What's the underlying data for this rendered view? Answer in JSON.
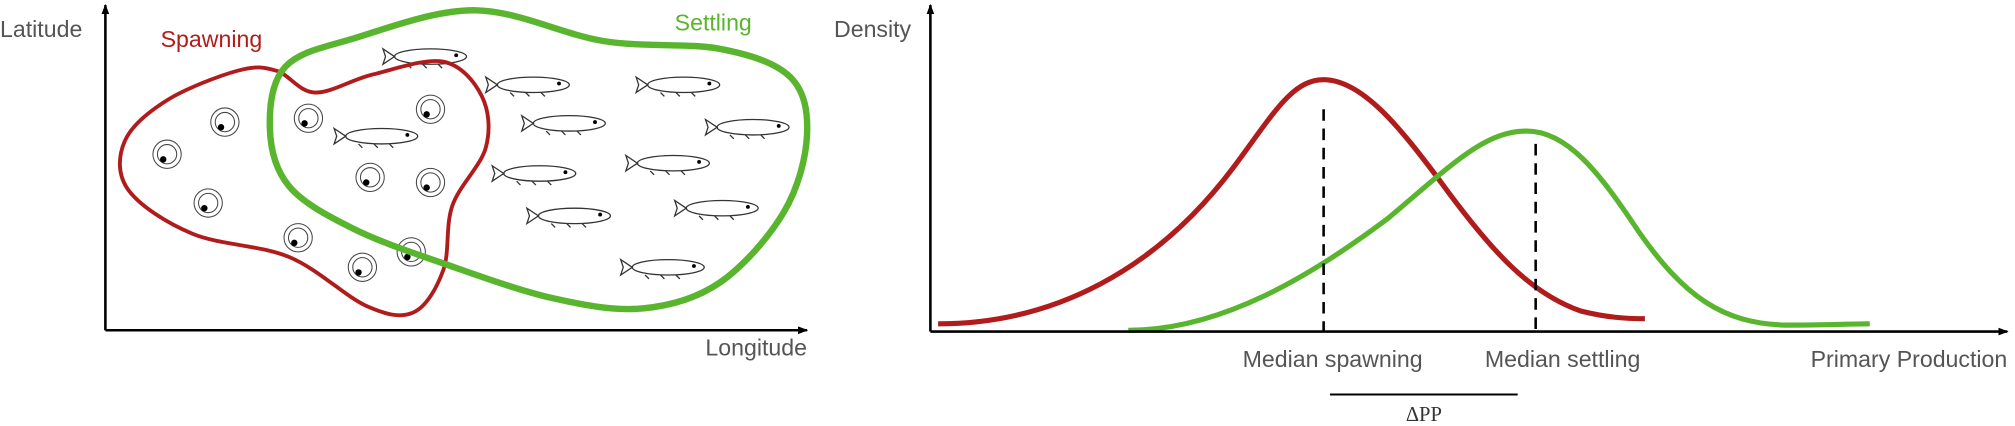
{
  "left_panel": {
    "y_axis_label": "Latitude",
    "x_axis_label": "Longitude",
    "spawning_label": "Spawning",
    "settling_label": "Settling"
  },
  "right_panel": {
    "y_axis_label": "Density",
    "x_axis_label": "Primary Production",
    "median_spawning_label": "Median spawning",
    "median_settling_label": "Median settling",
    "difference_label": "ΔPP"
  }
}
